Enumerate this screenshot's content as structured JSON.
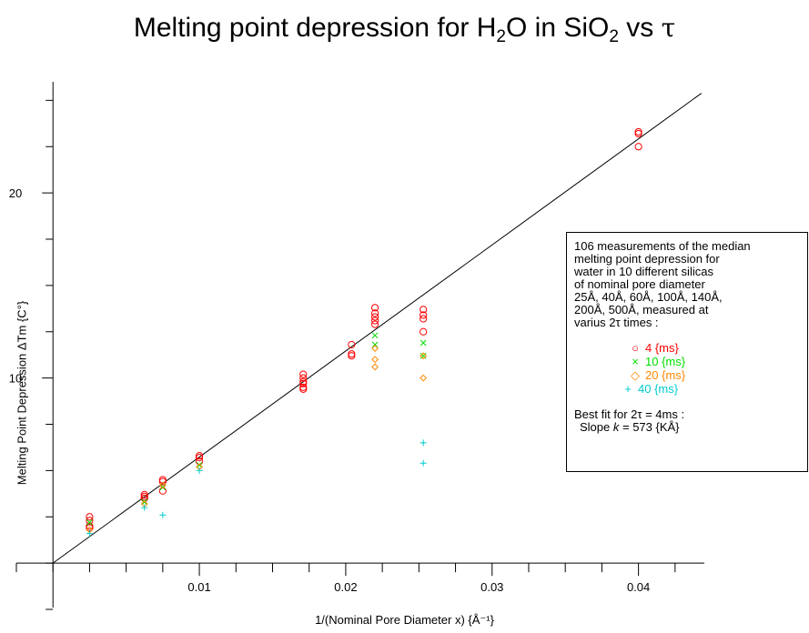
{
  "title": {
    "main": "Melting point depression for H",
    "sub1": "2",
    "mid": "O  in SiO",
    "sub2": "2",
    "vs": " vs  ",
    "tau": "τ"
  },
  "chart_data": {
    "type": "scatter",
    "xlabel": "1/(Nominal Pore Diameter x) {Å⁻¹}",
    "ylabel": "Melting Point Depression  ΔTm {C°}",
    "xlim": [
      -0.0025,
      0.0445
    ],
    "ylim": [
      -2.4,
      26
    ],
    "x_ticks": [
      0.01,
      0.02,
      0.03,
      0.04
    ],
    "x_tick_labels": [
      "0.01",
      "0.02",
      "0.03",
      "0.04"
    ],
    "y_ticks": [
      10,
      20
    ],
    "y_tick_labels": [
      "10",
      "20"
    ],
    "fit_line": {
      "slope": 573,
      "intercept": 0,
      "x_range": [
        0,
        0.0443
      ]
    },
    "series": [
      {
        "name": "4 {ms}",
        "marker": "circle",
        "color": "#ff0000",
        "points": [
          [
            0.0025,
            2.5
          ],
          [
            0.0025,
            2.3
          ],
          [
            0.0025,
            2.0
          ],
          [
            0.0025,
            1.9
          ],
          [
            0.00625,
            3.7
          ],
          [
            0.00625,
            3.6
          ],
          [
            0.00625,
            3.5
          ],
          [
            0.0075,
            4.5
          ],
          [
            0.0075,
            4.4
          ],
          [
            0.0075,
            3.9
          ],
          [
            0.01,
            5.8
          ],
          [
            0.01,
            5.7
          ],
          [
            0.01,
            5.5
          ],
          [
            0.0171,
            10.2
          ],
          [
            0.0171,
            10.0
          ],
          [
            0.0171,
            9.8
          ],
          [
            0.0171,
            9.7
          ],
          [
            0.0171,
            9.5
          ],
          [
            0.0171,
            9.4
          ],
          [
            0.0204,
            11.8
          ],
          [
            0.0204,
            11.3
          ],
          [
            0.0204,
            11.2
          ],
          [
            0.022,
            13.8
          ],
          [
            0.022,
            13.5
          ],
          [
            0.022,
            13.3
          ],
          [
            0.022,
            13.1
          ],
          [
            0.022,
            12.9
          ],
          [
            0.0253,
            13.7
          ],
          [
            0.0253,
            13.4
          ],
          [
            0.0253,
            13.2
          ],
          [
            0.0253,
            12.5
          ],
          [
            0.04,
            23.3
          ],
          [
            0.04,
            23.2
          ],
          [
            0.04,
            22.5
          ]
        ]
      },
      {
        "name": "10 {ms}",
        "marker": "cross",
        "color": "#00dd00",
        "points": [
          [
            0.0025,
            2.2
          ],
          [
            0.00625,
            3.3
          ],
          [
            0.0075,
            4.1
          ],
          [
            0.01,
            5.3
          ],
          [
            0.022,
            12.3
          ],
          [
            0.022,
            11.8
          ],
          [
            0.0253,
            11.9
          ],
          [
            0.0253,
            11.2
          ]
        ]
      },
      {
        "name": "20 {ms}",
        "marker": "diamond",
        "color": "#ff8800",
        "points": [
          [
            0.0025,
            1.8
          ],
          [
            0.00625,
            3.2
          ],
          [
            0.0075,
            4.2
          ],
          [
            0.01,
            5.2
          ],
          [
            0.022,
            11.6
          ],
          [
            0.022,
            11.0
          ],
          [
            0.022,
            10.6
          ],
          [
            0.0253,
            11.2
          ],
          [
            0.0253,
            10.0
          ]
        ]
      },
      {
        "name": "40 {ms}",
        "marker": "plus",
        "color": "#00cccc",
        "points": [
          [
            0.0025,
            1.6
          ],
          [
            0.00625,
            3.0
          ],
          [
            0.0075,
            2.6
          ],
          [
            0.01,
            5.0
          ],
          [
            0.0253,
            6.5
          ],
          [
            0.0253,
            5.4
          ]
        ]
      }
    ]
  },
  "legend": {
    "description": "106 measurements of the median\nmelting point depression for\nwater in 10 different silicas\nof nominal pore diameter\n25Å, 40Å, 60Å, 100Å, 140Å,\n200Å, 500Å, measured at\nvarius 2τ times :",
    "entries": [
      {
        "symbol": "○",
        "label": "4 {ms}",
        "color": "#ff0000"
      },
      {
        "symbol": "×",
        "label": "10 {ms}",
        "color": "#00dd00"
      },
      {
        "symbol": "◇",
        "label": "20 {ms}",
        "color": "#ff8800"
      },
      {
        "symbol": "+",
        "label": "40 {ms}",
        "color": "#00cccc"
      }
    ],
    "fit_line1": "Best fit for 2τ = 4ms :",
    "fit_line2_prefix": "Slope ",
    "fit_line2_k": "k",
    "fit_line2_suffix": " =  573 {KÅ}"
  }
}
